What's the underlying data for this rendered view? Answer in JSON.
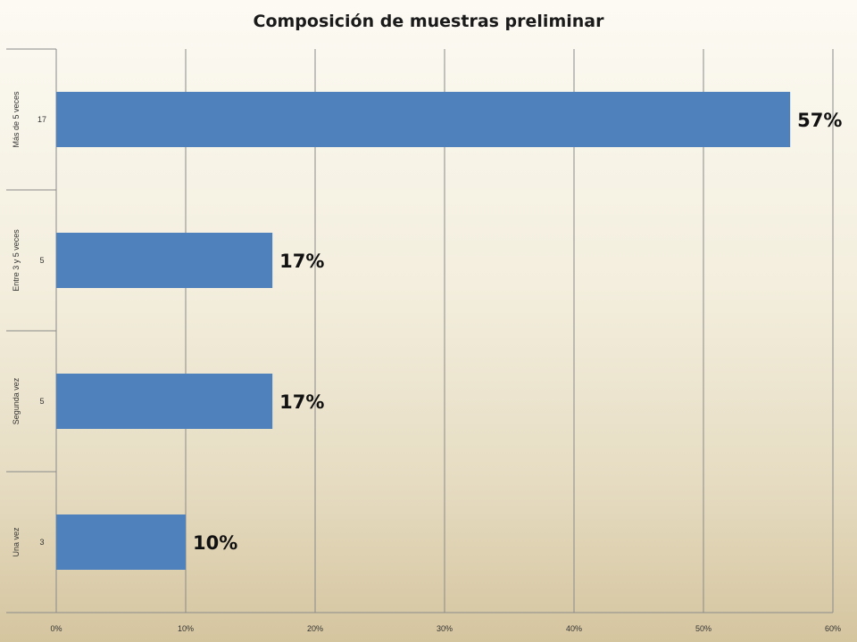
{
  "chart_data": {
    "type": "bar",
    "orientation": "horizontal",
    "title": "Composición de muestras preliminar",
    "xlabel": "",
    "ylabel": "",
    "xlim": [
      0,
      0.6
    ],
    "x_ticks": [
      {
        "value": 0,
        "label": "0%"
      },
      {
        "value": 0.1,
        "label": "10%"
      },
      {
        "value": 0.2,
        "label": "20%"
      },
      {
        "value": 0.3,
        "label": "30%"
      },
      {
        "value": 0.4,
        "label": "40%"
      },
      {
        "value": 0.5,
        "label": "50%"
      },
      {
        "value": 0.6,
        "label": "60%"
      }
    ],
    "categories": [
      {
        "group": "Más de 5 veces",
        "count": "17",
        "value": 0.567,
        "label": "57%"
      },
      {
        "group": "Entre 3 y 5 veces",
        "count": "5",
        "value": 0.167,
        "label": "17%"
      },
      {
        "group": "Segunda vez",
        "count": "5",
        "value": 0.167,
        "label": "17%"
      },
      {
        "group": "Una vez",
        "count": "3",
        "value": 0.1,
        "label": "10%"
      }
    ],
    "bar_color": "#4f81bd",
    "grid": true,
    "legend": false
  }
}
